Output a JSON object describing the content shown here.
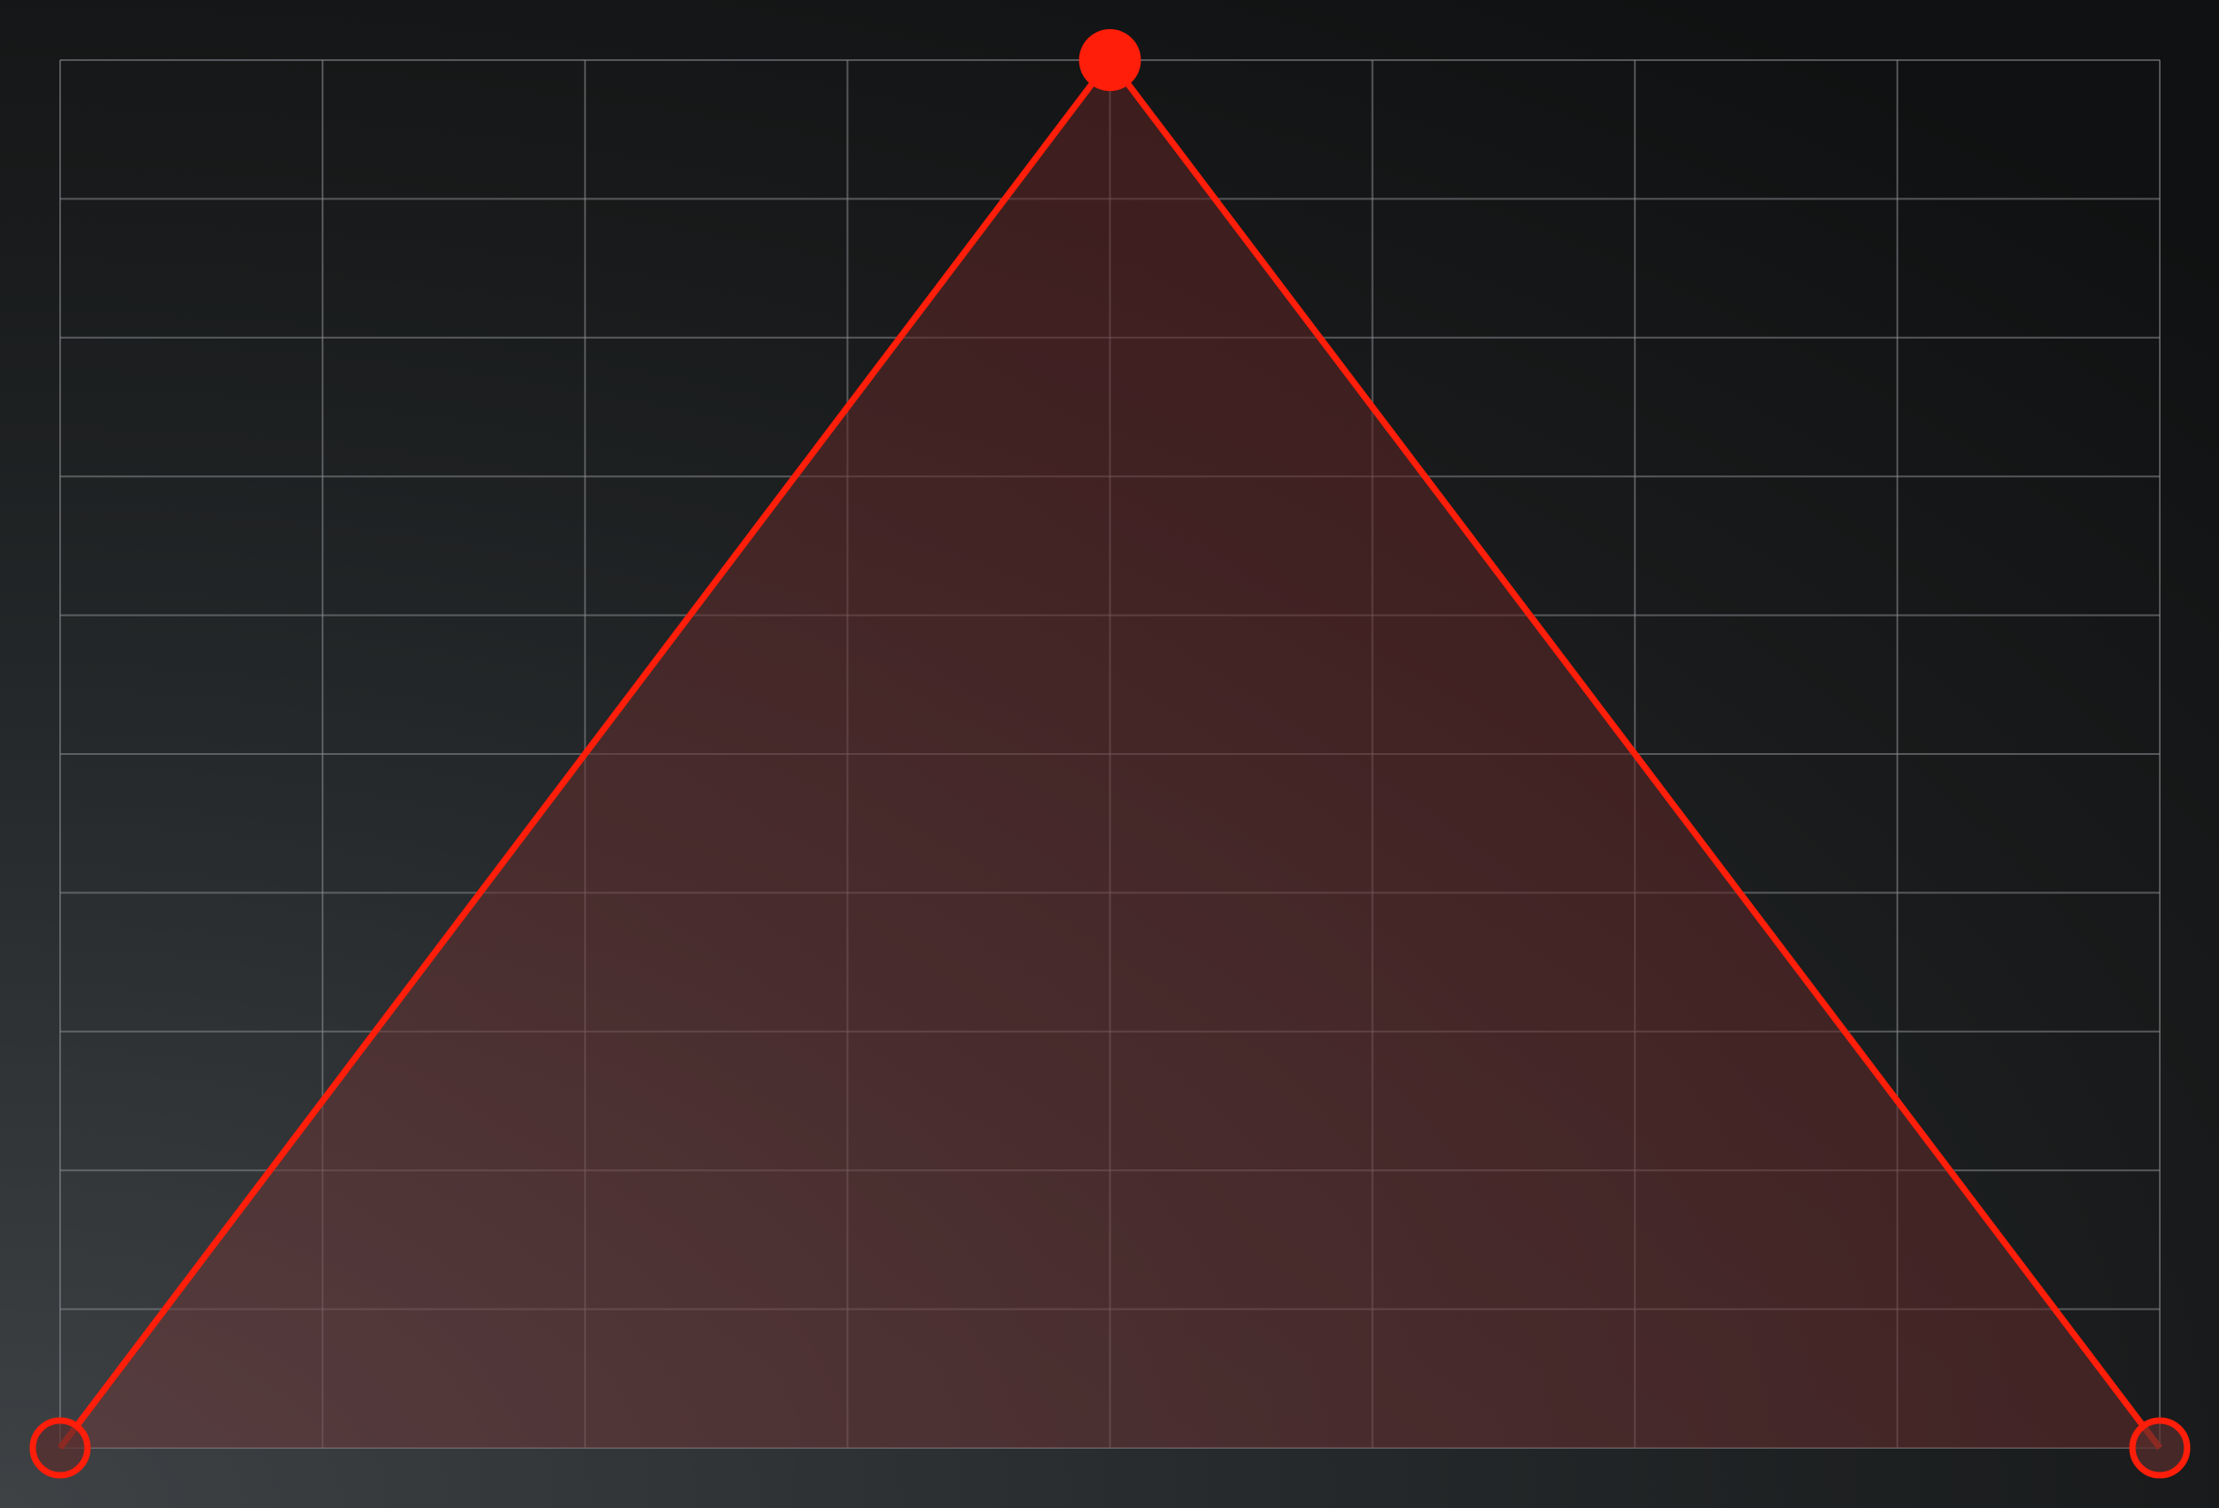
{
  "graph_editor": {
    "grid": {
      "columns": 8,
      "rows": 10,
      "line_color": "#8a8d8f"
    },
    "curve": {
      "color": "#ff1e0a",
      "fill_color": "#6b2a2a",
      "points": [
        {
          "name": "start",
          "x": 0,
          "y": 0,
          "style": "hollow"
        },
        {
          "name": "peak",
          "x": 0.5,
          "y": 1,
          "style": "solid"
        },
        {
          "name": "end",
          "x": 1,
          "y": 0,
          "style": "hollow"
        }
      ]
    }
  }
}
